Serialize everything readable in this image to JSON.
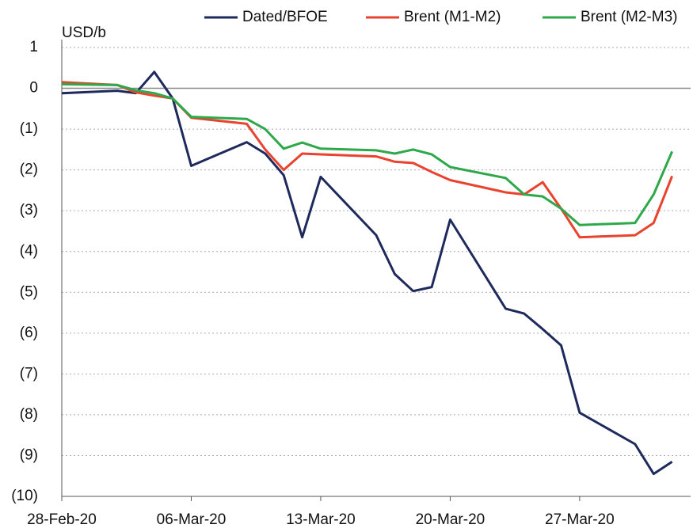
{
  "chart_data": {
    "type": "line",
    "y_label": "USD/b",
    "x": [
      "2020-02-28",
      "2020-03-02",
      "2020-03-03",
      "2020-03-04",
      "2020-03-05",
      "2020-03-06",
      "2020-03-09",
      "2020-03-10",
      "2020-03-11",
      "2020-03-12",
      "2020-03-13",
      "2020-03-16",
      "2020-03-17",
      "2020-03-18",
      "2020-03-19",
      "2020-03-20",
      "2020-03-23",
      "2020-03-24",
      "2020-03-25",
      "2020-03-26",
      "2020-03-27",
      "2020-03-30",
      "2020-03-31",
      "2020-04-01"
    ],
    "series": [
      {
        "name": "Dated/BFOE",
        "color": "#1f2a5c",
        "values": [
          -0.12,
          -0.06,
          -0.12,
          0.4,
          -0.25,
          -1.9,
          -1.32,
          -1.6,
          -2.13,
          -3.65,
          -2.17,
          -3.6,
          -4.55,
          -4.97,
          -4.87,
          -3.22,
          -5.4,
          -5.52,
          -5.9,
          -6.3,
          -7.95,
          -8.72,
          -9.45,
          -9.15
        ]
      },
      {
        "name": "Brent (M1-M2)",
        "color": "#e8432e",
        "values": [
          0.15,
          0.08,
          -0.1,
          -0.18,
          -0.25,
          -0.72,
          -0.87,
          -1.5,
          -2.0,
          -1.6,
          -1.62,
          -1.67,
          -1.8,
          -1.83,
          -2.05,
          -2.25,
          -2.55,
          -2.6,
          -2.3,
          -2.95,
          -3.65,
          -3.6,
          -3.3,
          -2.15
        ]
      },
      {
        "name": "Brent (M2-M3)",
        "color": "#2ea84a",
        "values": [
          0.1,
          0.08,
          -0.05,
          -0.12,
          -0.25,
          -0.7,
          -0.75,
          -1.0,
          -1.48,
          -1.33,
          -1.48,
          -1.52,
          -1.6,
          -1.5,
          -1.62,
          -1.93,
          -2.2,
          -2.6,
          -2.65,
          -2.95,
          -3.35,
          -3.3,
          -2.6,
          -1.55
        ]
      }
    ],
    "xlim": [
      "2020-02-28",
      "2020-04-02"
    ],
    "xticks": [
      {
        "value": "2020-02-28",
        "label": "28-Feb-20"
      },
      {
        "value": "2020-03-06",
        "label": "06-Mar-20"
      },
      {
        "value": "2020-03-13",
        "label": "13-Mar-20"
      },
      {
        "value": "2020-03-20",
        "label": "20-Mar-20"
      },
      {
        "value": "2020-03-27",
        "label": "27-Mar-20"
      }
    ],
    "ylim": [
      -10,
      1
    ],
    "yticks": [
      {
        "value": -10,
        "label": "(10)"
      },
      {
        "value": -9,
        "label": "(9)"
      },
      {
        "value": -8,
        "label": "(8)"
      },
      {
        "value": -7,
        "label": "(7)"
      },
      {
        "value": -6,
        "label": "(6)"
      },
      {
        "value": -5,
        "label": "(5)"
      },
      {
        "value": -4,
        "label": "(4)"
      },
      {
        "value": -3,
        "label": "(3)"
      },
      {
        "value": -2,
        "label": "(2)"
      },
      {
        "value": -1,
        "label": "(1)"
      },
      0,
      1
    ],
    "grid": true,
    "legend": "top"
  }
}
